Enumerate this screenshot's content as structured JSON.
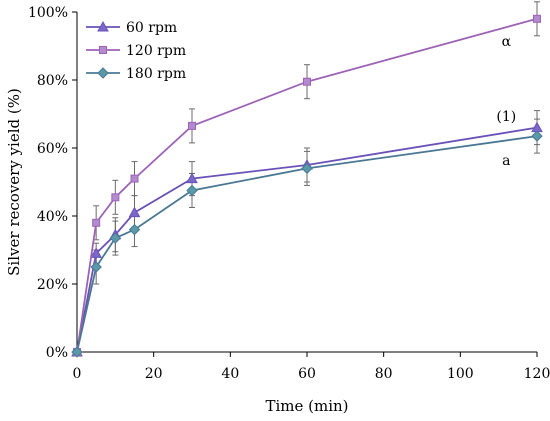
{
  "chart_data": {
    "type": "line",
    "xlabel": "Time (min)",
    "ylabel": "Silver recovery yield (%)",
    "xlim": [
      0,
      120
    ],
    "ylim": [
      0,
      100
    ],
    "x_ticks": [
      "0",
      "20",
      "40",
      "60",
      "80",
      "100",
      "120"
    ],
    "y_ticks": [
      "0%",
      "20%",
      "40%",
      "60%",
      "80%",
      "100%"
    ],
    "grid": false,
    "legend_position": "top-left",
    "x": [
      0,
      5,
      10,
      15,
      30,
      60,
      120
    ],
    "series": [
      {
        "name": "60 rpm",
        "marker": "triangle",
        "color": "#6a52b8",
        "marker_color": "#7b68c9",
        "values": [
          0,
          29,
          34.5,
          41,
          51,
          55,
          66
        ],
        "error": [
          0,
          3,
          5,
          5,
          5,
          5,
          5
        ]
      },
      {
        "name": "120 rpm",
        "marker": "square",
        "color": "#9d63b5",
        "marker_color": "#b28ad0",
        "values": [
          0,
          38,
          45.5,
          51,
          66.5,
          79.5,
          98
        ],
        "error": [
          0,
          5,
          5,
          5,
          5,
          5,
          5
        ]
      },
      {
        "name": "180 rpm",
        "marker": "diamond",
        "color": "#4a7894",
        "marker_color": "#5a9aa8",
        "values": [
          0,
          25,
          33.5,
          36,
          47.5,
          54,
          63.5
        ],
        "error": [
          0,
          5,
          5,
          5,
          5,
          5,
          5
        ]
      }
    ],
    "annotations": [
      {
        "text": "α",
        "x": 112,
        "y": 90
      },
      {
        "text": "(1)",
        "x": 112,
        "y": 68
      },
      {
        "text": "a",
        "x": 112,
        "y": 55
      }
    ]
  }
}
